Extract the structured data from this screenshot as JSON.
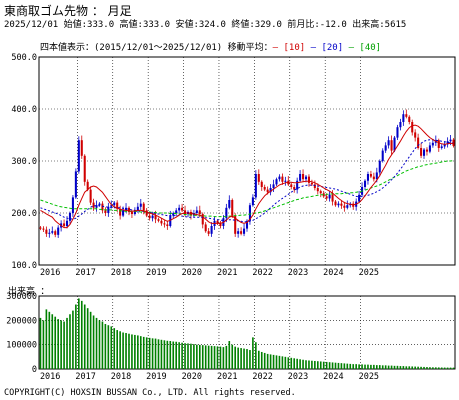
{
  "header": {
    "title": "東商取ゴム先物 ： 月足",
    "info": "2025/12/01 始値:333.0 高値:333.0 安値:324.0 終値:329.0 前月比:-12.0 出来高:5615"
  },
  "legend": {
    "main": "四本値表示：",
    "period": "(2015/12/01～2025/12/01)",
    "ma_label": "移動平均：",
    "ma10": "[10]",
    "ma20": "[20]",
    "ma40": "[40]"
  },
  "volume_label": "出来高 ：",
  "copyright": "COPYRIGHT(C) HOXSIN BUSSAN Co., LTD. All rights reserved.",
  "colors": {
    "up": "#0000c8",
    "down": "#d00000",
    "ma10": "#d00000",
    "ma20": "#0000c8",
    "ma40": "#00c000",
    "volume": "#008000"
  },
  "chart_data": [
    {
      "type": "candlestick",
      "ylim": [
        100,
        500
      ],
      "yticks": [
        "100.0",
        "200.0",
        "300.0",
        "400.0",
        "500.0"
      ],
      "xticks": [
        "2016",
        "2017",
        "2018",
        "2019",
        "2020",
        "2021",
        "2022",
        "2023",
        "2024",
        "2025"
      ],
      "series": [
        "[10]",
        "[20]",
        "[40]"
      ],
      "close": [
        170,
        168,
        160,
        162,
        165,
        158,
        172,
        180,
        175,
        185,
        200,
        230,
        280,
        340,
        310,
        260,
        245,
        220,
        210,
        215,
        218,
        205,
        200,
        212,
        215,
        220,
        208,
        195,
        205,
        210,
        202,
        198,
        205,
        212,
        218,
        205,
        195,
        190,
        195,
        188,
        185,
        180,
        178,
        175,
        195,
        200,
        205,
        210,
        205,
        198,
        202,
        195,
        200,
        205,
        198,
        178,
        165,
        160,
        175,
        185,
        180,
        175,
        190,
        210,
        225,
        195,
        160,
        165,
        160,
        170,
        185,
        215,
        230,
        275,
        260,
        250,
        245,
        240,
        248,
        255,
        265,
        270,
        260,
        262,
        255,
        250,
        245,
        262,
        275,
        265,
        270,
        258,
        255,
        248,
        242,
        238,
        232,
        228,
        235,
        222,
        215,
        218,
        214,
        210,
        215,
        218,
        212,
        222,
        235,
        250,
        262,
        275,
        270,
        265,
        278,
        300,
        320,
        330,
        340,
        320,
        345,
        365,
        375,
        390,
        385,
        375,
        355,
        345,
        325,
        310,
        322,
        318,
        330,
        335,
        340,
        325,
        328,
        332,
        338,
        341,
        329
      ],
      "ma10": [
        205,
        202,
        198,
        195,
        192,
        185,
        180,
        176,
        172,
        172,
        178,
        188,
        200,
        215,
        228,
        240,
        245,
        250,
        252,
        250,
        245,
        240,
        232,
        224,
        216,
        212,
        210,
        207,
        206,
        205,
        204,
        203,
        204,
        205,
        205,
        204,
        202,
        200,
        198,
        196,
        193,
        190,
        187,
        184,
        186,
        189,
        192,
        196,
        199,
        200,
        200,
        199,
        198,
        197,
        196,
        193,
        188,
        183,
        180,
        180,
        180,
        180,
        182,
        186,
        192,
        194,
        190,
        186,
        182,
        180,
        182,
        188,
        196,
        208,
        218,
        226,
        233,
        238,
        242,
        246,
        250,
        254,
        256,
        258,
        259,
        259,
        258,
        258,
        259,
        260,
        261,
        261,
        260,
        258,
        255,
        252,
        248,
        245,
        242,
        238,
        233,
        228,
        224,
        220,
        218,
        217,
        216,
        217,
        220,
        226,
        233,
        241,
        249,
        256,
        263,
        272,
        282,
        292,
        303,
        312,
        320,
        329,
        338,
        348,
        357,
        364,
        368,
        369,
        367,
        362,
        356,
        350,
        345,
        341,
        338,
        335,
        333,
        332,
        333,
        334,
        333
      ],
      "ma20": [
        210,
        208,
        206,
        204,
        202,
        200,
        198,
        195,
        192,
        190,
        189,
        188,
        190,
        194,
        198,
        203,
        207,
        211,
        214,
        214,
        214,
        213,
        212,
        211,
        210,
        210,
        210,
        210,
        209,
        208,
        207,
        206,
        205,
        204,
        204,
        203,
        202,
        201,
        200,
        199,
        198,
        197,
        196,
        195,
        195,
        195,
        195,
        195,
        194,
        193,
        192,
        192,
        192,
        192,
        192,
        192,
        191,
        190,
        189,
        188,
        187,
        186,
        186,
        186,
        187,
        187,
        186,
        185,
        184,
        183,
        183,
        184,
        186,
        189,
        192,
        196,
        200,
        205,
        210,
        215,
        220,
        224,
        228,
        232,
        236,
        240,
        244,
        247,
        250,
        252,
        253,
        254,
        253,
        253,
        252,
        251,
        250,
        249,
        248,
        247,
        246,
        244,
        242,
        240,
        238,
        236,
        234,
        232,
        231,
        232,
        233,
        234,
        236,
        238,
        241,
        244,
        248,
        253,
        258,
        264,
        270,
        277,
        284,
        292,
        300,
        308,
        316,
        324,
        330,
        334,
        338,
        340,
        341,
        341,
        340,
        339,
        338,
        337,
        336,
        335,
        334
      ],
      "ma40": [
        225,
        223,
        221,
        219,
        217,
        215,
        213,
        212,
        211,
        210,
        209,
        208,
        208,
        208,
        208,
        208,
        208,
        208,
        208,
        208,
        207,
        207,
        206,
        206,
        206,
        205,
        205,
        204,
        204,
        203,
        203,
        203,
        203,
        203,
        202,
        202,
        202,
        202,
        201,
        201,
        200,
        200,
        200,
        200,
        199,
        199,
        199,
        198,
        198,
        197,
        197,
        196,
        196,
        195,
        195,
        195,
        194,
        194,
        194,
        193,
        193,
        193,
        193,
        193,
        194,
        194,
        195,
        195,
        196,
        196,
        197,
        198,
        199,
        200,
        201,
        202,
        204,
        206,
        208,
        210,
        212,
        214,
        216,
        218,
        220,
        222,
        224,
        226,
        227,
        229,
        230,
        231,
        232,
        233,
        234,
        235,
        235,
        236,
        236,
        237,
        237,
        237,
        237,
        238,
        238,
        239,
        239,
        240,
        241,
        242,
        244,
        246,
        248,
        250,
        252,
        254,
        257,
        260,
        263,
        266,
        269,
        272,
        275,
        278,
        281,
        283,
        285,
        287,
        289,
        290,
        292,
        293,
        294,
        295,
        296,
        297,
        298,
        299,
        300,
        300,
        301
      ]
    },
    {
      "type": "bar",
      "title": "出来高",
      "ylim": [
        0,
        300000
      ],
      "yticks": [
        "0",
        "100000",
        "200000",
        "300000"
      ],
      "xticks": [
        "2016",
        "2017",
        "2018",
        "2019",
        "2020",
        "2021",
        "2022",
        "2023",
        "2024",
        "2025"
      ],
      "values": [
        210000,
        200000,
        245000,
        235000,
        225000,
        215000,
        205000,
        200000,
        195000,
        210000,
        225000,
        240000,
        265000,
        290000,
        280000,
        265000,
        250000,
        235000,
        220000,
        210000,
        200000,
        195000,
        185000,
        180000,
        175000,
        168000,
        160000,
        155000,
        150000,
        148000,
        145000,
        142000,
        140000,
        138000,
        135000,
        132000,
        130000,
        128000,
        126000,
        125000,
        122000,
        120000,
        118000,
        116000,
        115000,
        113000,
        112000,
        110000,
        108000,
        106000,
        105000,
        104000,
        102000,
        100000,
        99000,
        98000,
        97000,
        96000,
        95000,
        94000,
        93000,
        92000,
        90000,
        95000,
        115000,
        100000,
        92000,
        88000,
        86000,
        84000,
        82000,
        78000,
        130000,
        110000,
        75000,
        70000,
        66000,
        62000,
        60000,
        58000,
        56000,
        54000,
        52000,
        50000,
        48000,
        46000,
        44000,
        42000,
        40000,
        38000,
        36000,
        35000,
        34000,
        33000,
        32000,
        31000,
        30000,
        29000,
        28000,
        27000,
        26000,
        25000,
        24000,
        23000,
        22000,
        21000,
        20000,
        20000,
        19000,
        19000,
        18000,
        18000,
        17000,
        17000,
        16000,
        16000,
        15000,
        15000,
        14000,
        14000,
        13000,
        13000,
        12000,
        12000,
        11000,
        11000,
        10500,
        10000,
        9500,
        9000,
        8500,
        8000,
        7500,
        7000,
        6800,
        6500,
        6200,
        6000,
        5900,
        5800,
        5615
      ]
    }
  ]
}
